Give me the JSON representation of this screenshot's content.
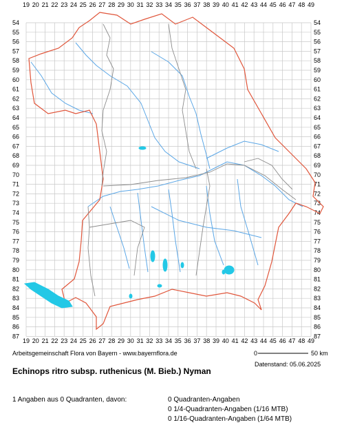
{
  "grid": {
    "columns": [
      "19",
      "20",
      "21",
      "22",
      "23",
      "24",
      "25",
      "26",
      "27",
      "28",
      "29",
      "30",
      "31",
      "32",
      "33",
      "34",
      "35",
      "36",
      "37",
      "38",
      "39",
      "40",
      "41",
      "42",
      "43",
      "44",
      "45",
      "46",
      "47",
      "48",
      "49"
    ],
    "rows": [
      "54",
      "55",
      "56",
      "57",
      "58",
      "59",
      "60",
      "61",
      "62",
      "63",
      "64",
      "65",
      "66",
      "67",
      "68",
      "69",
      "70",
      "71",
      "72",
      "73",
      "74",
      "75",
      "76",
      "77",
      "78",
      "79",
      "80",
      "81",
      "82",
      "83",
      "84",
      "85",
      "86",
      "87"
    ]
  },
  "colors": {
    "grid": "#c8c8c8",
    "state_border": "#e0553a",
    "district_border": "#8c8c8c",
    "rivers": "#5aa6e6",
    "lakes": "#23c8e6"
  },
  "scale": {
    "start": "0",
    "end": "50 km"
  },
  "credit": "Arbeitsgemeinschaft Flora von Bayern - www.bayernflora.de",
  "date": "Datenstand: 05.06.2025",
  "title": "Echinops ritro subsp. ruthenicus (M. Bieb.) Nyman",
  "stats": {
    "summary": "1 Angaben aus 0 Quadranten, davon:",
    "quadrant": "0 Quadranten-Angaben",
    "quarter": "0 1/4-Quadranten-Angaben (1/16 MTB)",
    "sixteenth": "0 1/16-Quadranten-Angaben (1/64 MTB)"
  }
}
